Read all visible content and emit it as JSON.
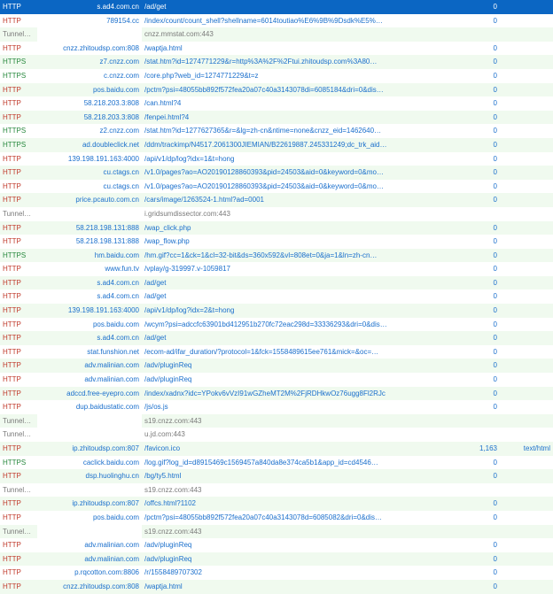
{
  "colors": {
    "header_bg": "#0b66c3",
    "header_fg": "#ffffff",
    "alt_row_bg": "#f0faef",
    "http_color": "#c0392b",
    "https_color": "#27883d",
    "tunnel_color": "#7a7a7a",
    "link_color": "#1a6fcc"
  },
  "columns": [
    "protocol",
    "host",
    "url",
    "size",
    "content_type"
  ],
  "rows": [
    {
      "k": "header",
      "p": "HTTP",
      "h": "s.ad4.com.cn",
      "u": "/ad/get",
      "s": "0",
      "t": ""
    },
    {
      "k": "http",
      "p": "HTTP",
      "h": "789154.cc",
      "u": "/index/count/count_shell?shellname=6014toutiao%E6%9B%9Dsdk%E5%…",
      "s": "0",
      "t": ""
    },
    {
      "k": "tun",
      "p": "Tunnel to",
      "h": "",
      "u": "cnzz.mmstat.com:443",
      "s": "",
      "t": ""
    },
    {
      "k": "http",
      "p": "HTTP",
      "h": "cnzz.zhitoudsp.com:808",
      "u": "/waptja.html",
      "s": "0",
      "t": ""
    },
    {
      "k": "https",
      "p": "HTTPS",
      "h": "z7.cnzz.com",
      "u": "/stat.htm?id=1274771229&r=http%3A%2F%2Ftui.zhitoudsp.com%3A80…",
      "s": "0",
      "t": ""
    },
    {
      "k": "https",
      "p": "HTTPS",
      "h": "c.cnzz.com",
      "u": "/core.php?web_id=1274771229&t=z",
      "s": "0",
      "t": ""
    },
    {
      "k": "http",
      "p": "HTTP",
      "h": "pos.baidu.com",
      "u": "/pctm?psi=48055bb892f572fea20a07c40a3143078di=6085184&dri=0&dis…",
      "s": "0",
      "t": ""
    },
    {
      "k": "http",
      "p": "HTTP",
      "h": "58.218.203.3:808",
      "u": "/can.html?4",
      "s": "0",
      "t": ""
    },
    {
      "k": "http",
      "p": "HTTP",
      "h": "58.218.203.3:808",
      "u": "/fenpei.html?4",
      "s": "0",
      "t": ""
    },
    {
      "k": "https",
      "p": "HTTPS",
      "h": "z2.cnzz.com",
      "u": "/stat.htm?id=1277627365&r=&lg=zh-cn&ntime=none&cnzz_eid=1462640…",
      "s": "0",
      "t": ""
    },
    {
      "k": "https",
      "p": "HTTPS",
      "h": "ad.doubleclick.net",
      "u": "/ddm/trackimp/N4517.2061300JIEMIAN/B22619887.245331249;dc_trk_aid…",
      "s": "0",
      "t": ""
    },
    {
      "k": "http",
      "p": "HTTP",
      "h": "139.198.191.163:4000",
      "u": "/api/v1/dp/log?idx=1&t=hong",
      "s": "0",
      "t": ""
    },
    {
      "k": "http",
      "p": "HTTP",
      "h": "cu.ctags.cn",
      "u": "/v1.0/pages?ao=AO20190128860393&pid=24503&aid=0&keyword=0&mo…",
      "s": "0",
      "t": ""
    },
    {
      "k": "http",
      "p": "HTTP",
      "h": "cu.ctags.cn",
      "u": "/v1.0/pages?ao=AO20190128860393&pid=24503&aid=0&keyword=0&mo…",
      "s": "0",
      "t": ""
    },
    {
      "k": "http",
      "p": "HTTP",
      "h": "price.pcauto.com.cn",
      "u": "/cars/image/1263524-1.html?ad=0001",
      "s": "0",
      "t": ""
    },
    {
      "k": "tun",
      "p": "Tunnel to",
      "h": "",
      "u": "i.gridsumdissector.com:443",
      "s": "",
      "t": ""
    },
    {
      "k": "http",
      "p": "HTTP",
      "h": "58.218.198.131:888",
      "u": "/wap_click.php",
      "s": "0",
      "t": ""
    },
    {
      "k": "http",
      "p": "HTTP",
      "h": "58.218.198.131:888",
      "u": "/wap_flow.php",
      "s": "0",
      "t": ""
    },
    {
      "k": "https",
      "p": "HTTPS",
      "h": "hm.baidu.com",
      "u": "/hm.gif?cc=1&ck=1&cl=32-bit&ds=360x592&vl=808et=0&ja=1&ln=zh-cn…",
      "s": "0",
      "t": ""
    },
    {
      "k": "http",
      "p": "HTTP",
      "h": "www.fun.tv",
      "u": "/vplay/g-319997.v-1059817",
      "s": "0",
      "t": ""
    },
    {
      "k": "http",
      "p": "HTTP",
      "h": "s.ad4.com.cn",
      "u": "/ad/get",
      "s": "0",
      "t": ""
    },
    {
      "k": "http",
      "p": "HTTP",
      "h": "s.ad4.com.cn",
      "u": "/ad/get",
      "s": "0",
      "t": ""
    },
    {
      "k": "http",
      "p": "HTTP",
      "h": "139.198.191.163:4000",
      "u": "/api/v1/dp/log?idx=2&t=hong",
      "s": "0",
      "t": ""
    },
    {
      "k": "http",
      "p": "HTTP",
      "h": "pos.baidu.com",
      "u": "/wcym?psi=adccfc63901bd412951b270fc72eac298d=33336293&dri=0&dis…",
      "s": "0",
      "t": ""
    },
    {
      "k": "http",
      "p": "HTTP",
      "h": "s.ad4.com.cn",
      "u": "/ad/get",
      "s": "0",
      "t": ""
    },
    {
      "k": "http",
      "p": "HTTP",
      "h": "stat.funshion.net",
      "u": "/ecom-ad/ifar_duration/?protocol=1&fck=1558489615ee761&mick=&oc=…",
      "s": "0",
      "t": ""
    },
    {
      "k": "http",
      "p": "HTTP",
      "h": "adv.malinian.com",
      "u": "/adv/pluginReq",
      "s": "0",
      "t": ""
    },
    {
      "k": "http",
      "p": "HTTP",
      "h": "adv.malinian.com",
      "u": "/adv/pluginReq",
      "s": "0",
      "t": ""
    },
    {
      "k": "http",
      "p": "HTTP",
      "h": "adccd.free-eyepro.com",
      "u": "/index/xadnx?idc=YPokv6vVzI91wGZheMT2M%2FjRDHkwOz76ugg8Fl2RJc",
      "s": "0",
      "t": ""
    },
    {
      "k": "http",
      "p": "HTTP",
      "h": "dup.baidustatic.com",
      "u": "/js/os.js",
      "s": "0",
      "t": ""
    },
    {
      "k": "tun",
      "p": "Tunnel to",
      "h": "",
      "u": "s19.cnzz.com:443",
      "s": "",
      "t": ""
    },
    {
      "k": "tun",
      "p": "Tunnel to",
      "h": "",
      "u": "u.jd.com:443",
      "s": "",
      "t": ""
    },
    {
      "k": "http",
      "p": "HTTP",
      "h": "ip.zhitoudsp.com:807",
      "u": "/favicon.ico",
      "s": "1,163",
      "t": "text/html"
    },
    {
      "k": "https",
      "p": "HTTPS",
      "h": "caclick.baidu.com",
      "u": "/log.gif?log_id=d8915469c1569457a840da8e374ca5b1&app_id=cd4546…",
      "s": "0",
      "t": ""
    },
    {
      "k": "http",
      "p": "HTTP",
      "h": "dsp.huolinghu.cn",
      "u": "/bg/ty5.html",
      "s": "0",
      "t": ""
    },
    {
      "k": "tun",
      "p": "Tunnel to",
      "h": "",
      "u": "s19.cnzz.com:443",
      "s": "",
      "t": ""
    },
    {
      "k": "http",
      "p": "HTTP",
      "h": "ip.zhitoudsp.com:807",
      "u": "/offcs.html?1102",
      "s": "0",
      "t": ""
    },
    {
      "k": "http",
      "p": "HTTP",
      "h": "pos.baidu.com",
      "u": "/pctm?psi=48055bb892f572fea20a07c40a3143078d=6085082&dri=0&dis…",
      "s": "0",
      "t": ""
    },
    {
      "k": "tun",
      "p": "Tunnel to",
      "h": "",
      "u": "s19.cnzz.com:443",
      "s": "",
      "t": ""
    },
    {
      "k": "http",
      "p": "HTTP",
      "h": "adv.malinian.com",
      "u": "/adv/pluginReq",
      "s": "0",
      "t": ""
    },
    {
      "k": "http",
      "p": "HTTP",
      "h": "adv.malinian.com",
      "u": "/adv/pluginReq",
      "s": "0",
      "t": ""
    },
    {
      "k": "http",
      "p": "HTTP",
      "h": "p.rqcotton.com:8806",
      "u": "/r/1558489707302",
      "s": "0",
      "t": ""
    },
    {
      "k": "http",
      "p": "HTTP",
      "h": "cnzz.zhitoudsp.com:808",
      "u": "/waptja.html",
      "s": "0",
      "t": ""
    }
  ]
}
